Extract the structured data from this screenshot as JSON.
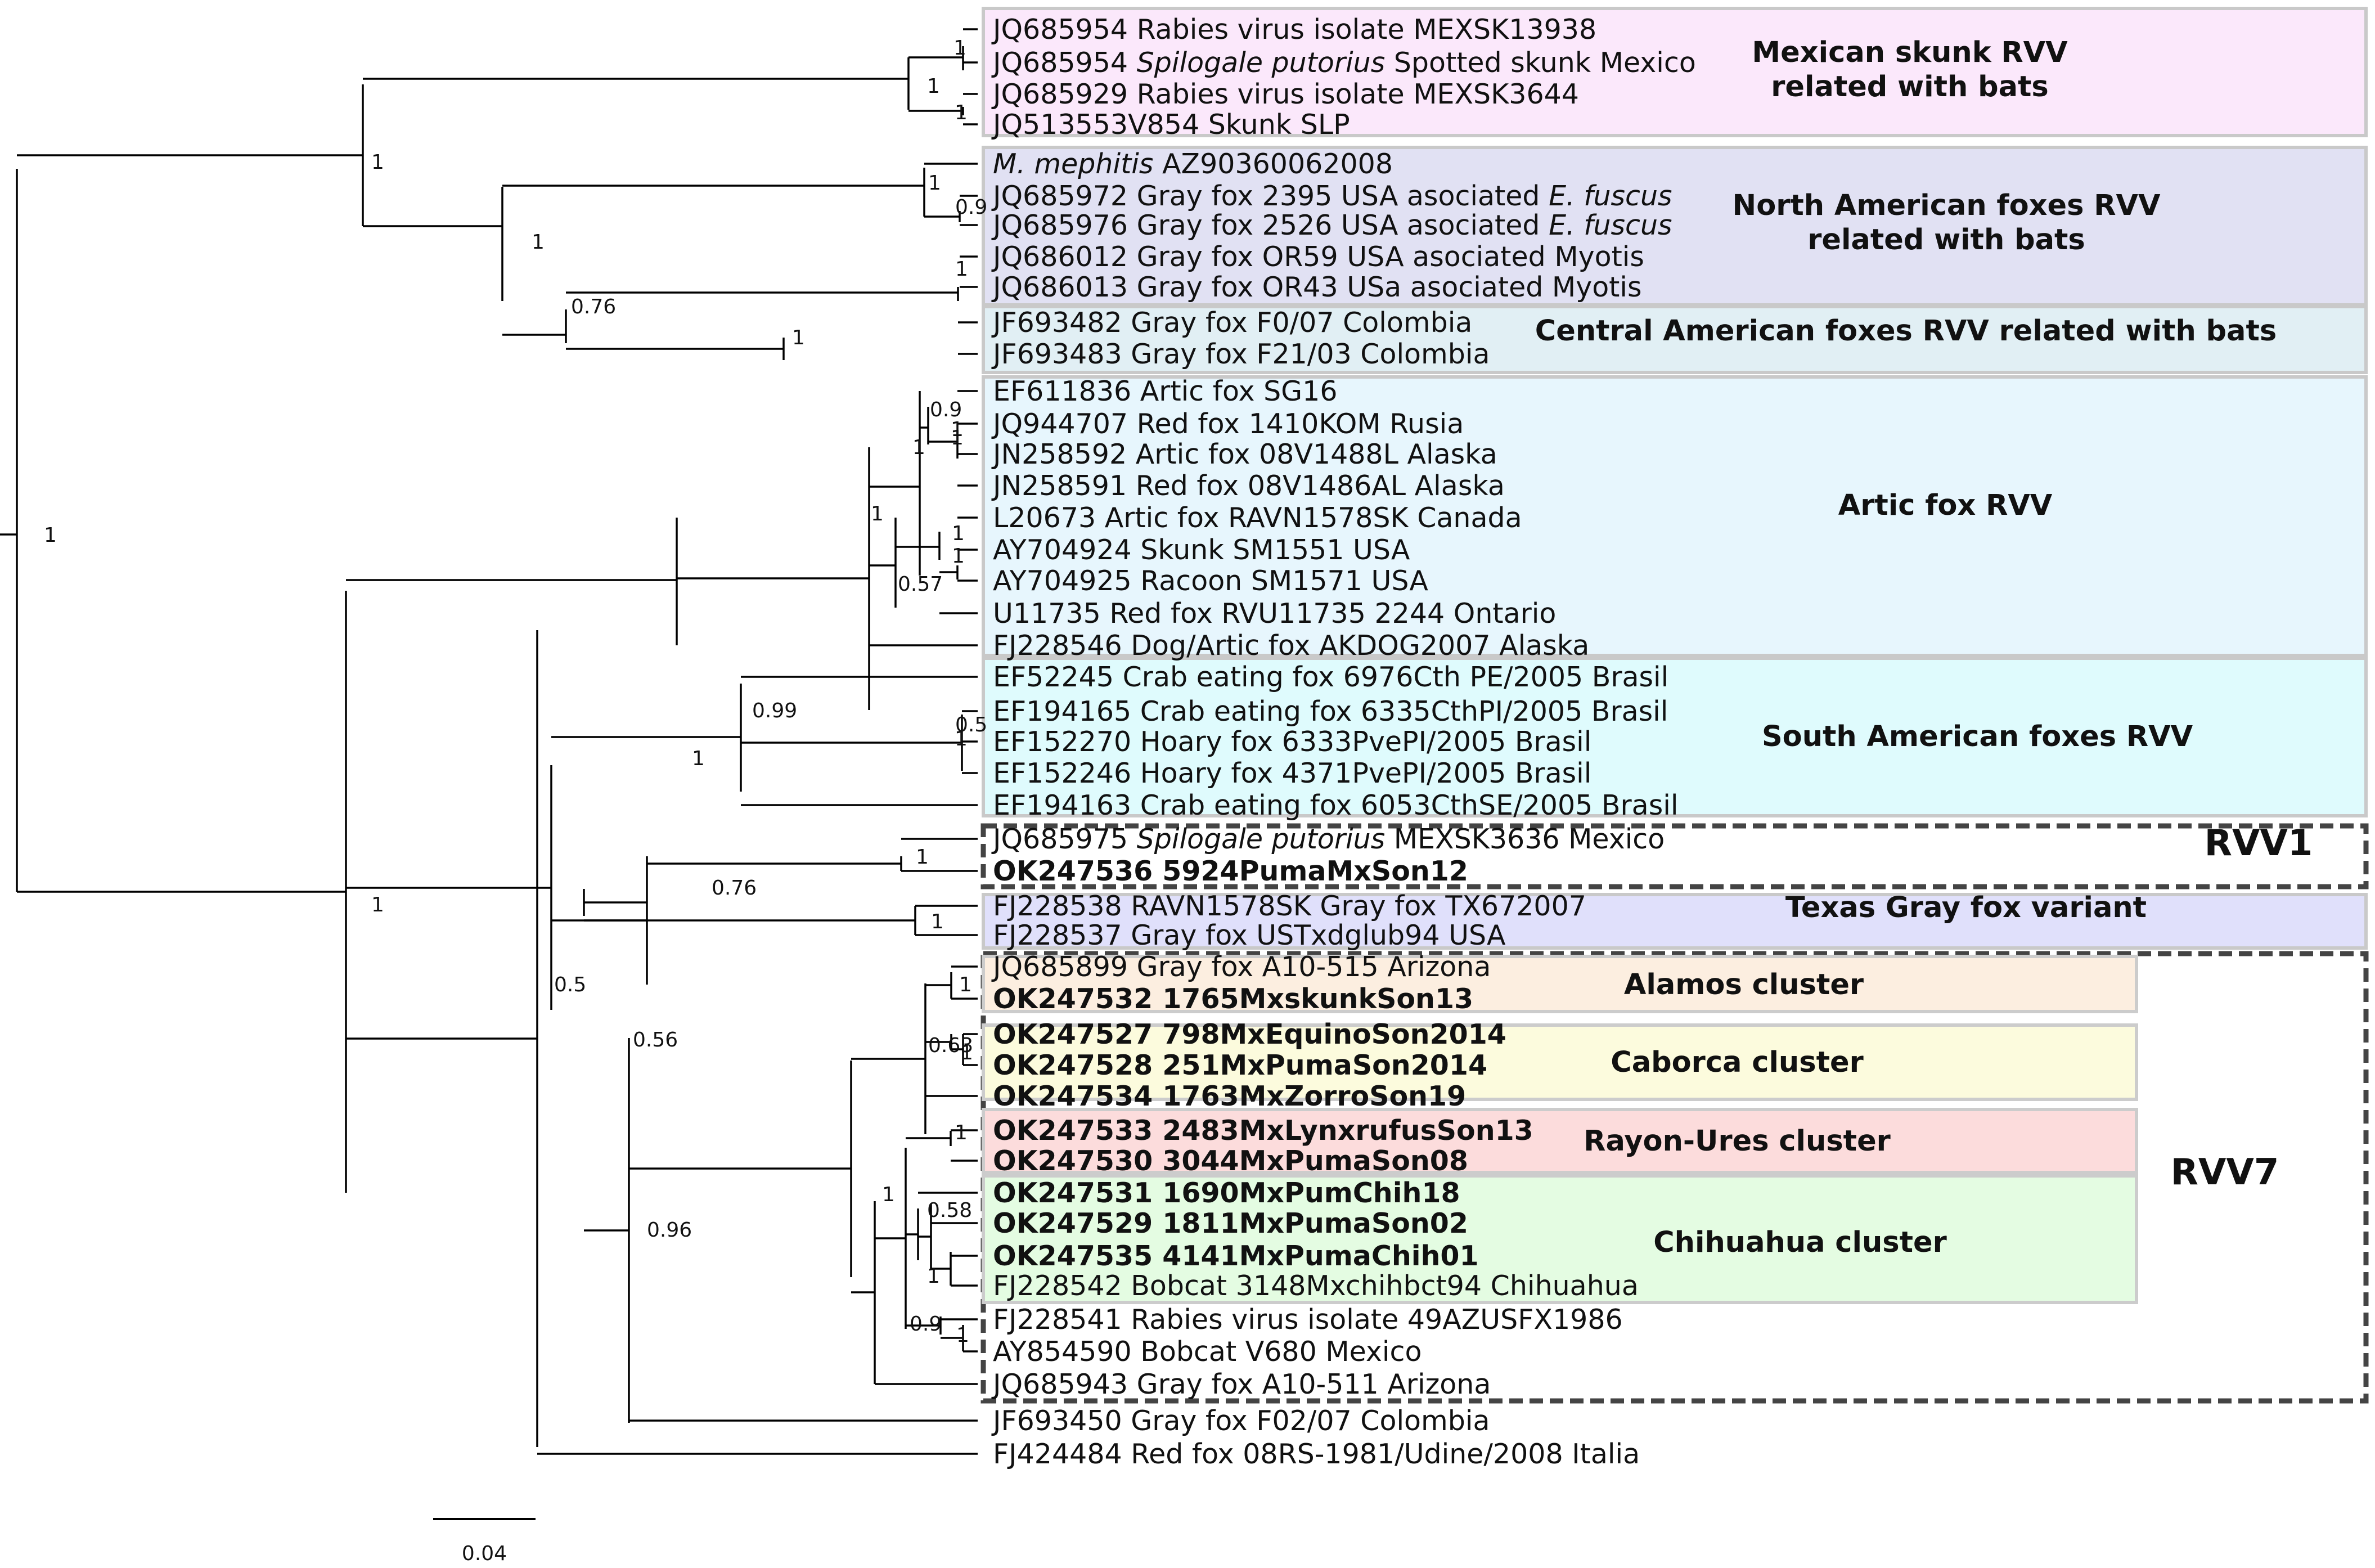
{
  "leaves": [
    {
      "id": "l0",
      "parts": [
        {
          "t": "JQ685954 Rabies virus isolate MEXSK13938"
        }
      ]
    },
    {
      "id": "l1",
      "parts": [
        {
          "t": "JQ685954 "
        },
        {
          "t": "Spilogale putorius",
          "i": true
        },
        {
          "t": " Spotted skunk Mexico"
        }
      ]
    },
    {
      "id": "l2",
      "parts": [
        {
          "t": "JQ685929 Rabies virus isolate MEXSK3644"
        }
      ]
    },
    {
      "id": "l3",
      "parts": [
        {
          "t": "JQ513553V854 Skunk SLP"
        }
      ]
    },
    {
      "id": "l4",
      "parts": [
        {
          "t": "M. mephitis",
          "i": true
        },
        {
          "t": " AZ90360062008"
        }
      ]
    },
    {
      "id": "l5",
      "parts": [
        {
          "t": "JQ685972 Gray fox 2395 USA asociated "
        },
        {
          "t": "E. fuscus",
          "i": true
        }
      ]
    },
    {
      "id": "l6",
      "parts": [
        {
          "t": "JQ685976 Gray fox 2526 USA  asociated "
        },
        {
          "t": "E. fuscus",
          "i": true
        }
      ]
    },
    {
      "id": "l7",
      "parts": [
        {
          "t": "JQ686012 Gray fox OR59 USA asociated Myotis"
        }
      ]
    },
    {
      "id": "l8",
      "parts": [
        {
          "t": "JQ686013 Gray fox OR43 USa asociated Myotis"
        }
      ]
    },
    {
      "id": "l9",
      "parts": [
        {
          "t": "JF693482 Gray fox F0/07 Colombia"
        }
      ]
    },
    {
      "id": "l10",
      "parts": [
        {
          "t": "JF693483 Gray fox F21/03 Colombia"
        }
      ]
    },
    {
      "id": "l11",
      "parts": [
        {
          "t": "EF611836 Artic fox SG16"
        }
      ]
    },
    {
      "id": "l12",
      "parts": [
        {
          "t": "JQ944707 Red fox 1410KOM Rusia"
        }
      ]
    },
    {
      "id": "l13",
      "parts": [
        {
          "t": "JN258592 Artic fox 08V1488L Alaska"
        }
      ]
    },
    {
      "id": "l14",
      "parts": [
        {
          "t": "JN258591 Red fox 08V1486AL Alaska"
        }
      ]
    },
    {
      "id": "l15",
      "parts": [
        {
          "t": "L20673 Artic fox RAVN1578SK Canada"
        }
      ]
    },
    {
      "id": "l16",
      "parts": [
        {
          "t": "AY704924 Skunk SM1551 USA"
        }
      ]
    },
    {
      "id": "l17",
      "parts": [
        {
          "t": "AY704925 Racoon SM1571 USA"
        }
      ]
    },
    {
      "id": "l18",
      "parts": [
        {
          "t": "U11735 Red fox RVU11735 2244 Ontario"
        }
      ]
    },
    {
      "id": "l19",
      "parts": [
        {
          "t": "FJ228546 Dog/Artic fox AKDOG2007 Alaska"
        }
      ]
    },
    {
      "id": "l20",
      "parts": [
        {
          "t": "EF52245 Crab eating fox 6976Cth PE/2005 Brasil"
        }
      ]
    },
    {
      "id": "l21",
      "parts": [
        {
          "t": "EF194165 Crab eating fox  6335CthPI/2005 Brasil"
        }
      ]
    },
    {
      "id": "l22",
      "parts": [
        {
          "t": "EF152270 Hoary fox 6333PvePI/2005 Brasil"
        }
      ]
    },
    {
      "id": "l23",
      "parts": [
        {
          "t": "EF152246 Hoary fox 4371PvePI/2005 Brasil"
        }
      ]
    },
    {
      "id": "l24",
      "parts": [
        {
          "t": "EF194163 Crab eating fox 6053CthSE/2005 Brasil"
        }
      ]
    },
    {
      "id": "l25",
      "parts": [
        {
          "t": "JQ685975 "
        },
        {
          "t": "Spilogale putorius",
          "i": true
        },
        {
          "t": " MEXSK3636 Mexico"
        }
      ]
    },
    {
      "id": "l26",
      "bold": true,
      "parts": [
        {
          "t": "OK247536 5924PumaMxSon12"
        }
      ]
    },
    {
      "id": "l27",
      "parts": [
        {
          "t": "FJ228538 RAVN1578SK Gray fox TX672007"
        }
      ]
    },
    {
      "id": "l28",
      "parts": [
        {
          "t": "FJ228537 Gray fox USTxdglub94 USA"
        }
      ]
    },
    {
      "id": "l29",
      "parts": [
        {
          "t": "JQ685899 Gray fox A10-515 Arizona"
        }
      ]
    },
    {
      "id": "l30",
      "bold": true,
      "parts": [
        {
          "t": "OK247532 1765MxskunkSon13"
        }
      ]
    },
    {
      "id": "l31",
      "bold": true,
      "parts": [
        {
          "t": "OK247527 798MxEquinoSon2014"
        }
      ]
    },
    {
      "id": "l32",
      "bold": true,
      "parts": [
        {
          "t": "OK247528 251MxPumaSon2014"
        }
      ]
    },
    {
      "id": "l33",
      "bold": true,
      "parts": [
        {
          "t": "OK247534 1763MxZorroSon19"
        }
      ]
    },
    {
      "id": "l34",
      "bold": true,
      "parts": [
        {
          "t": "OK247533 2483MxLynxrufusSon13"
        }
      ]
    },
    {
      "id": "l35",
      "bold": true,
      "parts": [
        {
          "t": "OK247530 3044MxPumaSon08"
        }
      ]
    },
    {
      "id": "l36",
      "bold": true,
      "parts": [
        {
          "t": "OK247531 1690MxPumChih18"
        }
      ]
    },
    {
      "id": "l37",
      "bold": true,
      "parts": [
        {
          "t": "OK247529 1811MxPumaSon02"
        }
      ]
    },
    {
      "id": "l38",
      "bold": true,
      "parts": [
        {
          "t": "OK247535 4141MxPumaChih01"
        }
      ]
    },
    {
      "id": "l39",
      "parts": [
        {
          "t": "FJ228542  Bobcat 3148Mxchihbct94 Chihuahua"
        }
      ]
    },
    {
      "id": "l40",
      "parts": [
        {
          "t": "FJ228541 Rabies virus isolate 49AZUSFX1986"
        }
      ]
    },
    {
      "id": "l41",
      "parts": [
        {
          "t": "AY854590 Bobcat V680 Mexico"
        }
      ]
    },
    {
      "id": "l42",
      "parts": [
        {
          "t": "JQ685943 Gray fox A10-511 Arizona"
        }
      ]
    },
    {
      "id": "l43",
      "parts": [
        {
          "t": "JF693450 Gray fox F02/07 Colombia"
        }
      ]
    },
    {
      "id": "l44",
      "parts": [
        {
          "t": "FJ424484 Red fox 08RS-1981/Udine/2008 Italia"
        }
      ]
    }
  ],
  "groups": [
    {
      "id": "g0",
      "lines": [
        "Mexican skunk RVV",
        "related with bats"
      ],
      "color": "#fbe8fb"
    },
    {
      "id": "g1",
      "lines": [
        "North American foxes RVV",
        "related  with bats"
      ],
      "color": "#e1e1f3"
    },
    {
      "id": "g2",
      "lines": [
        "Central American foxes RVV related with bats"
      ],
      "color": "#e1eff4"
    },
    {
      "id": "g3",
      "lines": [
        "Artic fox RVV"
      ],
      "color": "#e7f6fd"
    },
    {
      "id": "g4",
      "lines": [
        "South American foxes RVV"
      ],
      "color": "#dffbfd"
    },
    {
      "id": "g5",
      "lines": [
        "RVV1"
      ],
      "color": "#ffffff"
    },
    {
      "id": "g6",
      "lines": [
        "Texas Gray fox variant"
      ],
      "color": "#e0e0fb"
    },
    {
      "id": "g7",
      "lines": [
        "RVV7"
      ],
      "color": "#ffffff"
    }
  ],
  "clusters": [
    {
      "id": "c0",
      "label": "Alamos cluster",
      "color": "#fceee0"
    },
    {
      "id": "c1",
      "label": "Caborca cluster",
      "color": "#fcfbdd"
    },
    {
      "id": "c2",
      "label": "Rayon-Ures cluster",
      "color": "#fcdcdc"
    },
    {
      "id": "c3",
      "label": "Chihuahua cluster",
      "color": "#e4fce2"
    }
  ],
  "support_values": [
    "1",
    "1",
    "1",
    "1",
    "1",
    "0.9",
    "1",
    "1",
    "0.76",
    "1",
    "0.9",
    "1",
    "1",
    "1",
    "1",
    "0.57",
    "1",
    "1",
    "0.5",
    "0.99",
    "1",
    "1",
    "0.76",
    "1",
    "1",
    "1",
    "1",
    "0.63",
    "0.58",
    "1",
    "1",
    "0.9",
    "1",
    "0.56",
    "0.96",
    "0.5",
    "1",
    "1"
  ],
  "scale_bar": {
    "label": "0.04"
  }
}
